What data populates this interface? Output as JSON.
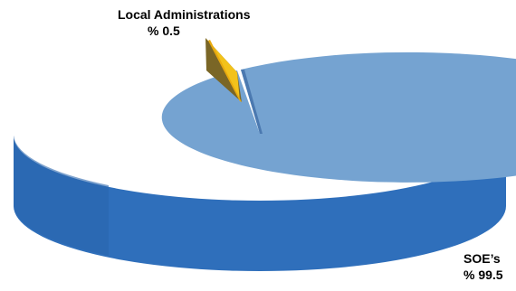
{
  "chart_data": {
    "type": "pie",
    "style": "3d",
    "slices": [
      {
        "label": "SOE’s",
        "value_text": "% 99.5",
        "value": 99.5,
        "color": "#75A3D1",
        "side_color": "#2F6FBB",
        "exploded": false
      },
      {
        "label": "Local Administrations",
        "value_text": "% 0.5",
        "value": 0.5,
        "color": "#F2C21B",
        "side_color": "#7A6626",
        "exploded": true
      }
    ],
    "legend": "none"
  }
}
